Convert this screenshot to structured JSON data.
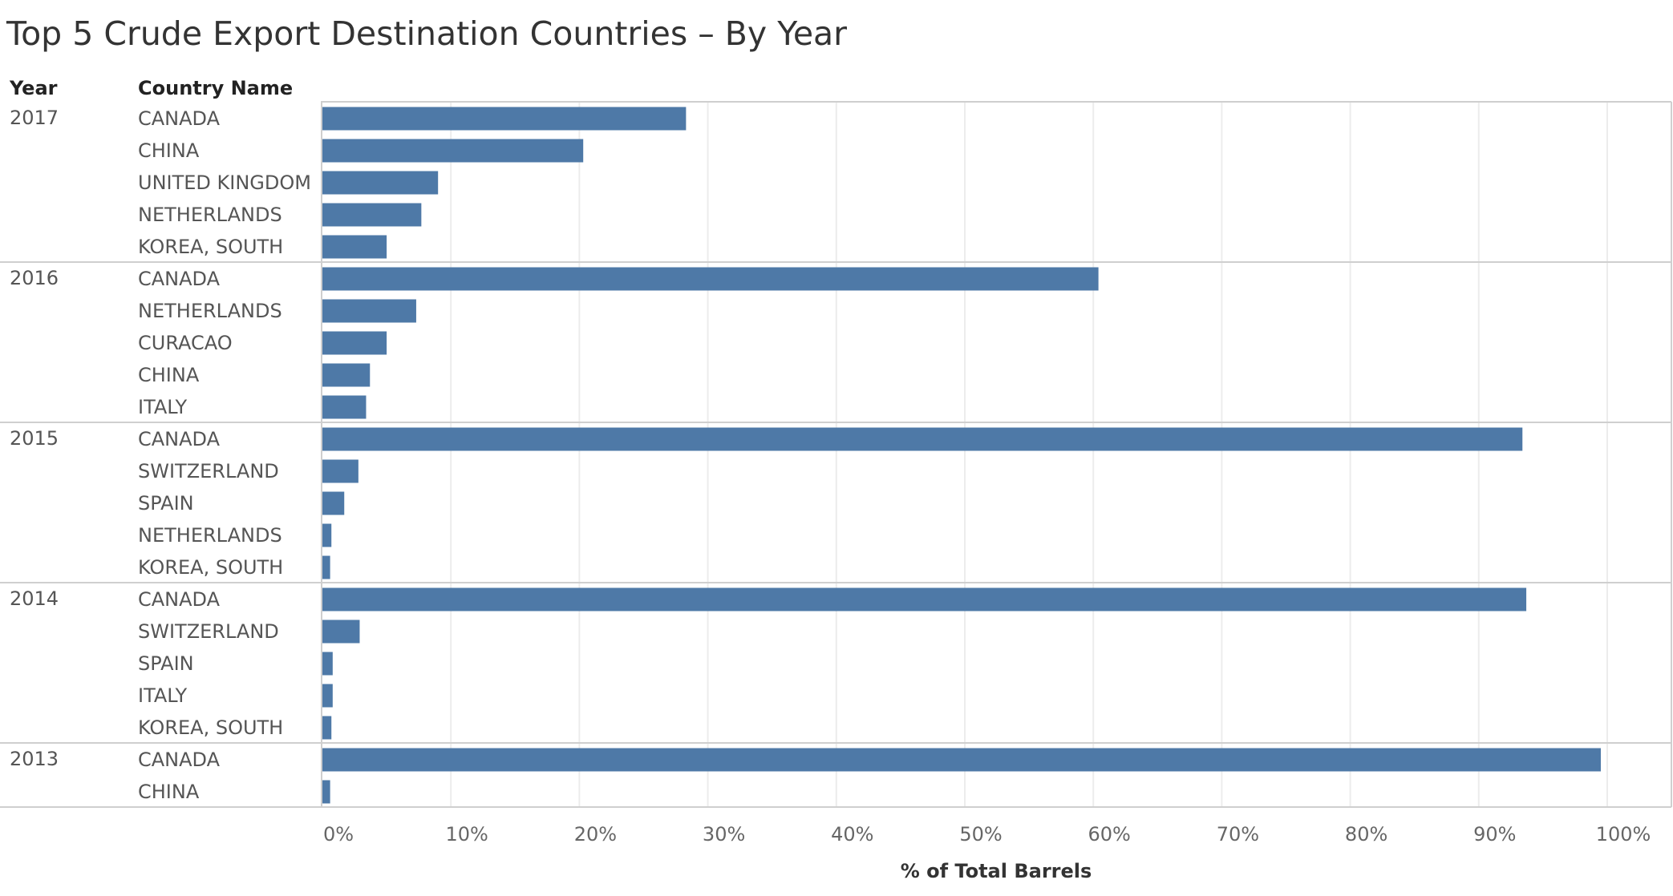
{
  "chart_data": {
    "type": "bar",
    "orientation": "horizontal",
    "title": "Top 5 Crude Export Destination Countries – By Year",
    "column_headers": {
      "year": "Year",
      "country": "Country Name"
    },
    "xlabel": "% of Total Barrels",
    "xlim": [
      0,
      100
    ],
    "x_ticks": [
      "0%",
      "10%",
      "20%",
      "30%",
      "40%",
      "50%",
      "60%",
      "70%",
      "80%",
      "90%",
      "100%"
    ],
    "bar_color": "#4e79a7",
    "groups": [
      {
        "year": "2017",
        "rows": [
          {
            "country": "CANADA",
            "value": 28.3
          },
          {
            "country": "CHINA",
            "value": 20.3
          },
          {
            "country": "UNITED KINGDOM",
            "value": 9.0
          },
          {
            "country": "NETHERLANDS",
            "value": 7.7
          },
          {
            "country": "KOREA, SOUTH",
            "value": 5.0
          }
        ]
      },
      {
        "year": "2016",
        "rows": [
          {
            "country": "CANADA",
            "value": 60.4
          },
          {
            "country": "NETHERLANDS",
            "value": 7.3
          },
          {
            "country": "CURACAO",
            "value": 5.0
          },
          {
            "country": "CHINA",
            "value": 3.7
          },
          {
            "country": "ITALY",
            "value": 3.4
          }
        ]
      },
      {
        "year": "2015",
        "rows": [
          {
            "country": "CANADA",
            "value": 93.4
          },
          {
            "country": "SWITZERLAND",
            "value": 2.8
          },
          {
            "country": "SPAIN",
            "value": 1.7
          },
          {
            "country": "NETHERLANDS",
            "value": 0.7
          },
          {
            "country": "KOREA, SOUTH",
            "value": 0.6
          }
        ]
      },
      {
        "year": "2014",
        "rows": [
          {
            "country": "CANADA",
            "value": 93.7
          },
          {
            "country": "SWITZERLAND",
            "value": 2.9
          },
          {
            "country": "SPAIN",
            "value": 0.8
          },
          {
            "country": "ITALY",
            "value": 0.8
          },
          {
            "country": "KOREA, SOUTH",
            "value": 0.7
          }
        ]
      },
      {
        "year": "2013",
        "rows": [
          {
            "country": "CANADA",
            "value": 99.5
          },
          {
            "country": "CHINA",
            "value": 0.6
          }
        ]
      }
    ]
  }
}
